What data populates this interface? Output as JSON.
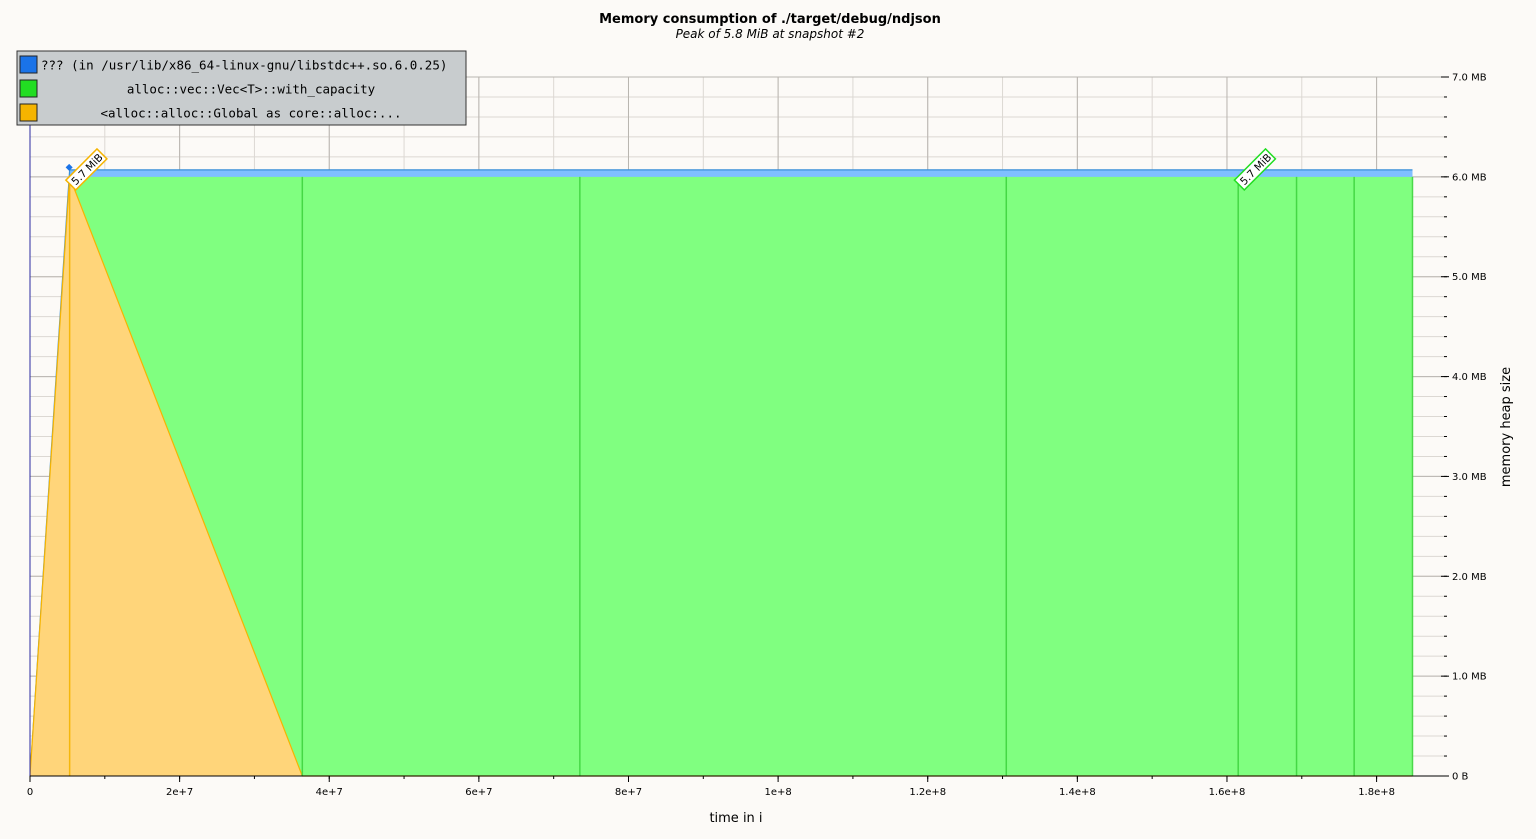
{
  "chart_data": {
    "type": "area",
    "title": "Memory consumption of ./target/debug/ndjson",
    "subtitle": "Peak of 5.8 MiB at snapshot #2",
    "xlabel": "time in i",
    "ylabel": "memory heap size",
    "xlim": [
      0,
      185000000
    ],
    "ylim": [
      0,
      7.0
    ],
    "x_ticks": [
      "0",
      "2e+7",
      "4e+7",
      "6e+7",
      "8e+7",
      "1e+8",
      "1.2e+8",
      "1.4e+8",
      "1.6e+8",
      "1.8e+8"
    ],
    "x_tick_values": [
      0,
      20000000,
      40000000,
      60000000,
      80000000,
      100000000,
      120000000,
      140000000,
      160000000,
      180000000
    ],
    "y_ticks": [
      "0 B",
      "1.0 MB",
      "2.0 MB",
      "3.0 MB",
      "4.0 MB",
      "5.0 MB",
      "6.0 MB",
      "7.0 MB"
    ],
    "y_tick_values": [
      0,
      1,
      2,
      3,
      4,
      5,
      6,
      7
    ],
    "grid": true,
    "legend_position": "top-left",
    "snapshot_x": [
      0,
      5300000,
      36400000,
      73500000,
      130500000,
      161500000,
      169300000,
      177000000,
      184800000
    ],
    "series": [
      {
        "name": "??? (in /usr/lib/x86_64-linux-gnu/libstdc++.so.6.0.25)",
        "color": "#1a73e8",
        "fill": "#7fbfff",
        "x": [
          0,
          5300000,
          184800000
        ],
        "values": [
          0,
          0.07,
          0.07
        ]
      },
      {
        "name": "alloc::vec::Vec<T>::with_capacity",
        "color": "#22dd22",
        "fill": "#80ff80",
        "x": [
          0,
          5300000,
          36400000,
          184800000
        ],
        "values": [
          0,
          6.0,
          6.0,
          6.0
        ]
      },
      {
        "name": "<alloc::alloc::Global as core::alloc:...",
        "color": "#f5b400",
        "fill": "#ffd57a",
        "x": [
          0,
          5300000,
          36400000,
          184800000
        ],
        "values": [
          0,
          6.0,
          0,
          0
        ]
      }
    ],
    "annotations": [
      {
        "text": "5.7 MiB",
        "x": 5300000,
        "y": 6.0,
        "color": "#f5b400"
      },
      {
        "text": "5.7 MiB",
        "x": 161500000,
        "y": 6.0,
        "color": "#22dd22"
      }
    ]
  }
}
